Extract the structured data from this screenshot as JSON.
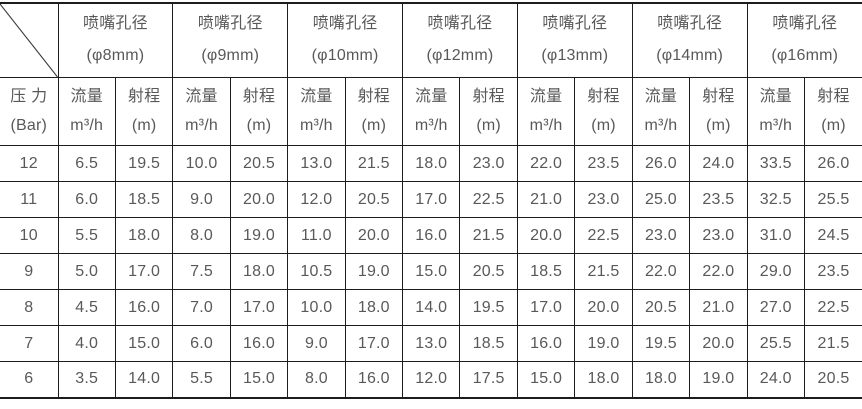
{
  "table": {
    "nozzle_title": "喷嘴孔径",
    "nozzle_sizes": [
      "(φ8mm)",
      "(φ9mm)",
      "(φ10mm)",
      "(φ12mm)",
      "(φ13mm)",
      "(φ14mm)",
      "(φ16mm)"
    ],
    "pressure_header": {
      "line1": "压 力",
      "line2": "(Bar)"
    },
    "flow_header": {
      "line1": "流量",
      "line2": "m³/h"
    },
    "range_header": {
      "line1": "射程",
      "line2": "(m)"
    },
    "rows": [
      {
        "pressure": "12",
        "values": [
          "6.5",
          "19.5",
          "10.0",
          "20.5",
          "13.0",
          "21.5",
          "18.0",
          "23.0",
          "22.0",
          "23.5",
          "26.0",
          "24.0",
          "33.5",
          "26.0"
        ]
      },
      {
        "pressure": "11",
        "values": [
          "6.0",
          "18.5",
          "9.0",
          "20.0",
          "12.0",
          "20.5",
          "17.0",
          "22.5",
          "21.0",
          "23.0",
          "25.0",
          "23.5",
          "32.5",
          "25.5"
        ]
      },
      {
        "pressure": "10",
        "values": [
          "5.5",
          "18.0",
          "8.0",
          "19.0",
          "11.0",
          "20.0",
          "16.0",
          "21.5",
          "20.0",
          "22.5",
          "23.0",
          "23.0",
          "31.0",
          "24.5"
        ]
      },
      {
        "pressure": "9",
        "values": [
          "5.0",
          "17.0",
          "7.5",
          "18.0",
          "10.5",
          "19.0",
          "15.0",
          "20.5",
          "18.5",
          "21.5",
          "22.0",
          "22.0",
          "29.0",
          "23.5"
        ]
      },
      {
        "pressure": "8",
        "values": [
          "4.5",
          "16.0",
          "7.0",
          "17.0",
          "10.0",
          "18.0",
          "14.0",
          "19.5",
          "17.0",
          "20.0",
          "20.5",
          "21.0",
          "27.0",
          "22.5"
        ]
      },
      {
        "pressure": "7",
        "values": [
          "4.0",
          "15.0",
          "6.0",
          "16.0",
          "9.0",
          "17.0",
          "13.0",
          "18.5",
          "16.0",
          "19.0",
          "19.5",
          "20.0",
          "25.5",
          "21.5"
        ]
      },
      {
        "pressure": "6",
        "values": [
          "3.5",
          "14.0",
          "5.5",
          "15.0",
          "8.0",
          "16.0",
          "12.0",
          "17.5",
          "15.0",
          "18.0",
          "18.0",
          "19.0",
          "24.0",
          "20.5"
        ]
      }
    ]
  },
  "colors": {
    "text": "#595959",
    "border": "#1d1d1d",
    "background": "#ffffff"
  },
  "chart_data": {
    "type": "table",
    "title": "",
    "row_header": "压力 (Bar)",
    "column_groups": [
      {
        "label": "喷嘴孔径 (φ8mm)",
        "columns": [
          "流量 m³/h",
          "射程 (m)"
        ]
      },
      {
        "label": "喷嘴孔径 (φ9mm)",
        "columns": [
          "流量 m³/h",
          "射程 (m)"
        ]
      },
      {
        "label": "喷嘴孔径 (φ10mm)",
        "columns": [
          "流量 m³/h",
          "射程 (m)"
        ]
      },
      {
        "label": "喷嘴孔径 (φ12mm)",
        "columns": [
          "流量 m³/h",
          "射程 (m)"
        ]
      },
      {
        "label": "喷嘴孔径 (φ13mm)",
        "columns": [
          "流量 m³/h",
          "射程 (m)"
        ]
      },
      {
        "label": "喷嘴孔径 (φ14mm)",
        "columns": [
          "流量 m³/h",
          "射程 (m)"
        ]
      },
      {
        "label": "喷嘴孔径 (φ16mm)",
        "columns": [
          "流量 m³/h",
          "射程 (m)"
        ]
      }
    ],
    "columns": [
      "压力 (Bar)",
      "φ8mm 流量 m³/h",
      "φ8mm 射程 (m)",
      "φ9mm 流量 m³/h",
      "φ9mm 射程 (m)",
      "φ10mm 流量 m³/h",
      "φ10mm 射程 (m)",
      "φ12mm 流量 m³/h",
      "φ12mm 射程 (m)",
      "φ13mm 流量 m³/h",
      "φ13mm 射程 (m)",
      "φ14mm 流量 m³/h",
      "φ14mm 射程 (m)",
      "φ16mm 流量 m³/h",
      "φ16mm 射程 (m)"
    ],
    "rows": [
      [
        12,
        6.5,
        19.5,
        10.0,
        20.5,
        13.0,
        21.5,
        18.0,
        23.0,
        22.0,
        23.5,
        26.0,
        24.0,
        33.5,
        26.0
      ],
      [
        11,
        6.0,
        18.5,
        9.0,
        20.0,
        12.0,
        20.5,
        17.0,
        22.5,
        21.0,
        23.0,
        25.0,
        23.5,
        32.5,
        25.5
      ],
      [
        10,
        5.5,
        18.0,
        8.0,
        19.0,
        11.0,
        20.0,
        16.0,
        21.5,
        20.0,
        22.5,
        23.0,
        23.0,
        31.0,
        24.5
      ],
      [
        9,
        5.0,
        17.0,
        7.5,
        18.0,
        10.5,
        19.0,
        15.0,
        20.5,
        18.5,
        21.5,
        22.0,
        22.0,
        29.0,
        23.5
      ],
      [
        8,
        4.5,
        16.0,
        7.0,
        17.0,
        10.0,
        18.0,
        14.0,
        19.5,
        17.0,
        20.0,
        20.5,
        21.0,
        27.0,
        22.5
      ],
      [
        7,
        4.0,
        15.0,
        6.0,
        16.0,
        9.0,
        17.0,
        13.0,
        18.5,
        16.0,
        19.0,
        19.5,
        20.0,
        25.5,
        21.5
      ],
      [
        6,
        3.5,
        14.0,
        5.5,
        15.0,
        8.0,
        16.0,
        12.0,
        17.5,
        15.0,
        18.0,
        18.0,
        19.0,
        24.0,
        20.5
      ]
    ]
  }
}
